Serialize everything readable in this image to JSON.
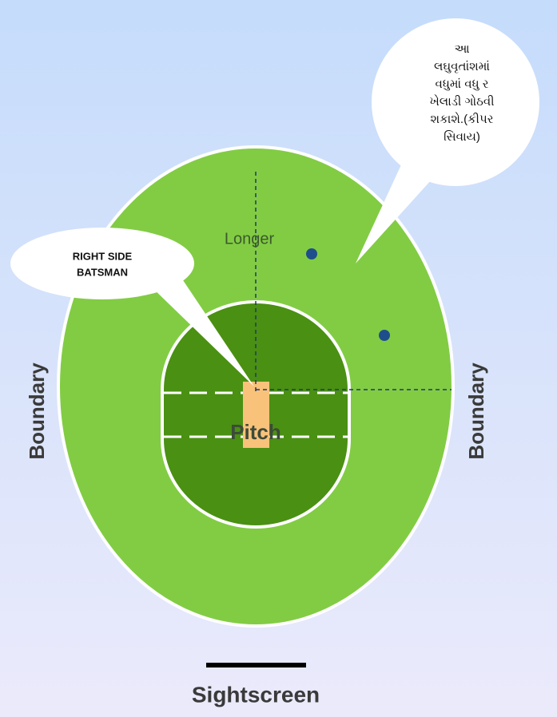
{
  "bubble_note": {
    "lines": [
      "આ",
      "લઘુવૃતાંશમાં",
      "વધુમાં વધુ ર",
      "ખેલાડી ગોઠવી",
      "શકાશે.(કીપર",
      "સિવાય)"
    ]
  },
  "batsman_label": {
    "lines": [
      "RIGHT SIDE",
      "BATSMAN"
    ]
  },
  "field_labels": {
    "longer": "Longer",
    "pitch": "Pitch",
    "boundary_left": "Boundary",
    "boundary_right": "Boundary",
    "sightscreen": "Sightscreen"
  }
}
